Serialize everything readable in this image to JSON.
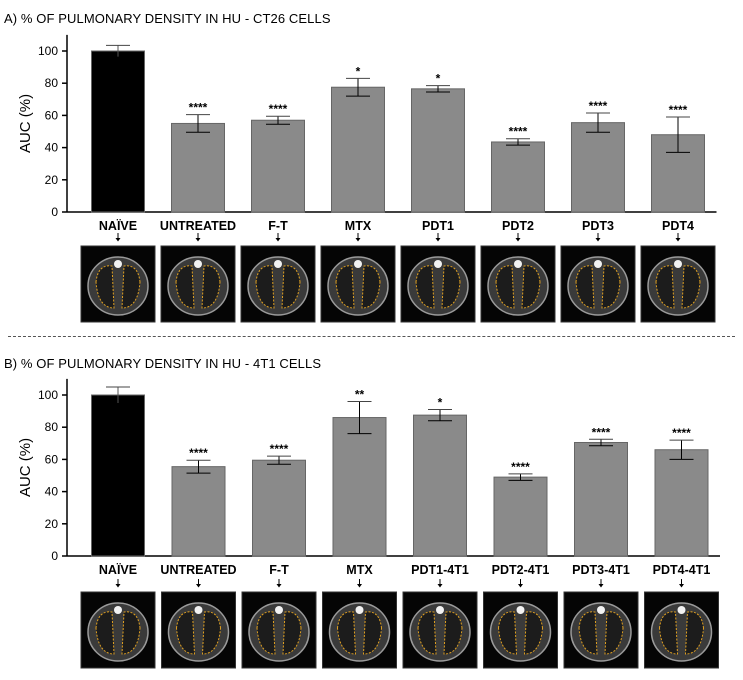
{
  "chart_data": [
    {
      "type": "bar",
      "title": "A) % OF PULMONARY DENSITY IN HU - CT26 CELLS",
      "ylabel": "AUC (%)",
      "ylim": [
        0,
        110
      ],
      "yticks": [
        "0",
        "20",
        "40",
        "60",
        "80",
        "100"
      ],
      "categories": [
        "NAÏVE",
        "UNTREATED",
        "F-T",
        "MTX",
        "PDT1",
        "PDT2",
        "PDT3",
        "PDT4"
      ],
      "values": [
        100,
        55,
        57,
        77.5,
        76.5,
        43.5,
        55.5,
        48
      ],
      "errors": [
        3.5,
        5.5,
        2.5,
        5.5,
        2,
        2,
        6,
        11
      ],
      "significance": [
        "",
        "****",
        "****",
        "*",
        "*",
        "****",
        "****",
        "****"
      ],
      "colors": [
        "#000000",
        "#8a8a8a",
        "#8a8a8a",
        "#8a8a8a",
        "#8a8a8a",
        "#8a8a8a",
        "#8a8a8a",
        "#8a8a8a"
      ]
    },
    {
      "type": "bar",
      "title": "B) % OF PULMONARY DENSITY IN HU - 4T1 CELLS",
      "ylabel": "AUC (%)",
      "ylim": [
        0,
        110
      ],
      "yticks": [
        "0",
        "20",
        "40",
        "60",
        "80",
        "100"
      ],
      "categories": [
        "NAÏVE",
        "UNTREATED",
        "F-T",
        "MTX",
        "PDT1-4T1",
        "PDT2-4T1",
        "PDT3-4T1",
        "PDT4-4T1"
      ],
      "values": [
        100,
        55.5,
        59.5,
        86,
        87.5,
        49,
        70.5,
        66
      ],
      "errors": [
        5,
        4,
        2.5,
        10,
        3.5,
        2,
        2,
        6
      ],
      "significance": [
        "",
        "****",
        "****",
        "**",
        "*",
        "****",
        "****",
        "****"
      ],
      "colors": [
        "#000000",
        "#8a8a8a",
        "#8a8a8a",
        "#8a8a8a",
        "#8a8a8a",
        "#8a8a8a",
        "#8a8a8a",
        "#8a8a8a"
      ]
    }
  ]
}
